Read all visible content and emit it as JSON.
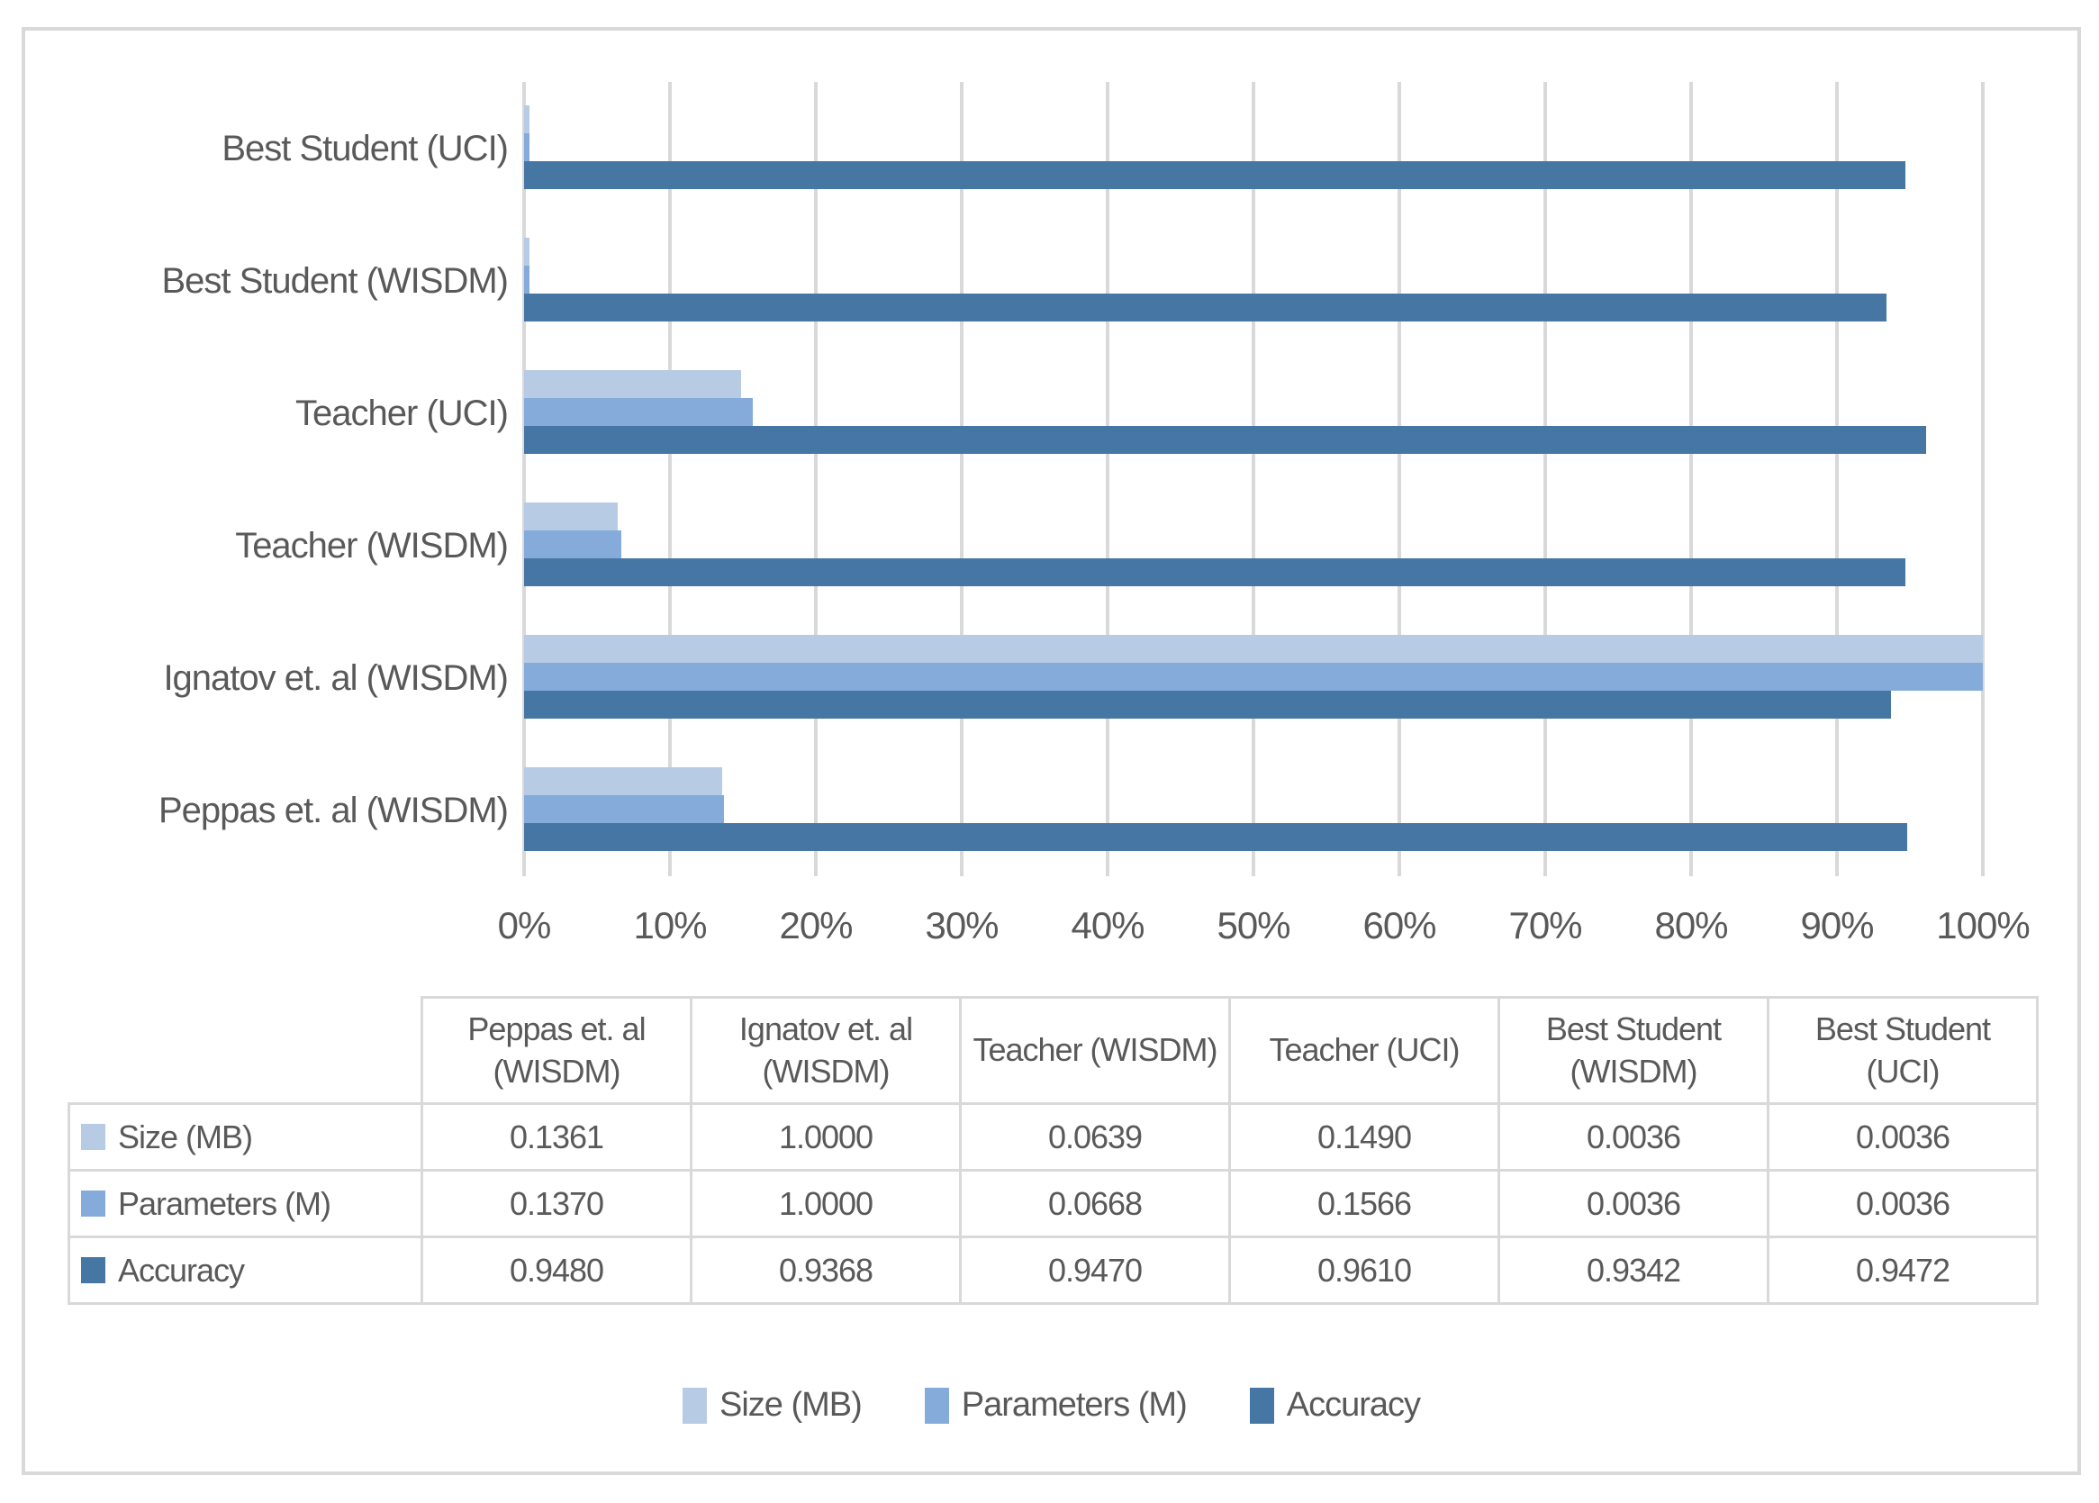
{
  "colors": {
    "size_series": "#b7cbe4",
    "parameters_series": "#85abdb",
    "accuracy_series": "#4677a4",
    "gridline": "#d9d9d9",
    "frame_border": "#d9d9d9",
    "text": "#595959"
  },
  "chart_data": {
    "type": "bar",
    "orientation": "horizontal",
    "title": "",
    "xlabel": "",
    "ylabel": "",
    "xlim": [
      0,
      1
    ],
    "grid": true,
    "legend_position": "bottom",
    "x_ticks": [
      "0%",
      "10%",
      "20%",
      "30%",
      "40%",
      "50%",
      "60%",
      "70%",
      "80%",
      "90%",
      "100%"
    ],
    "x_tick_values": [
      0,
      0.1,
      0.2,
      0.3,
      0.4,
      0.5,
      0.6,
      0.7,
      0.8,
      0.9,
      1.0
    ],
    "categories": [
      "Peppas et. al (WISDM)",
      "Ignatov et. al (WISDM)",
      "Teacher (WISDM)",
      "Teacher (UCI)",
      "Best Student (WISDM)",
      "Best Student (UCI)"
    ],
    "category_display_order_top_to_bottom": [
      5,
      4,
      3,
      2,
      1,
      0
    ],
    "series": [
      {
        "name": "Size (MB)",
        "values": [
          0.1361,
          1.0,
          0.0639,
          0.149,
          0.0036,
          0.0036
        ]
      },
      {
        "name": "Parameters (M)",
        "values": [
          0.137,
          1.0,
          0.0668,
          0.1566,
          0.0036,
          0.0036
        ]
      },
      {
        "name": "Accuracy",
        "values": [
          0.948,
          0.9368,
          0.947,
          0.961,
          0.9342,
          0.9472
        ]
      }
    ]
  },
  "table": {
    "corner_label": "",
    "column_headers": [
      "Peppas et. al (WISDM)",
      "Ignatov et. al (WISDM)",
      "Teacher (WISDM)",
      "Teacher (UCI)",
      "Best Student (WISDM)",
      "Best Student (UCI)"
    ],
    "rows": [
      {
        "label": "Size (MB)",
        "values": [
          "0.1361",
          "1.0000",
          "0.0639",
          "0.1490",
          "0.0036",
          "0.0036"
        ]
      },
      {
        "label": "Parameters (M)",
        "values": [
          "0.1370",
          "1.0000",
          "0.0668",
          "0.1566",
          "0.0036",
          "0.0036"
        ]
      },
      {
        "label": "Accuracy",
        "values": [
          "0.9480",
          "0.9368",
          "0.9470",
          "0.9610",
          "0.9342",
          "0.9472"
        ]
      }
    ]
  },
  "legend": {
    "items": [
      "Size (MB)",
      "Parameters (M)",
      "Accuracy"
    ]
  }
}
